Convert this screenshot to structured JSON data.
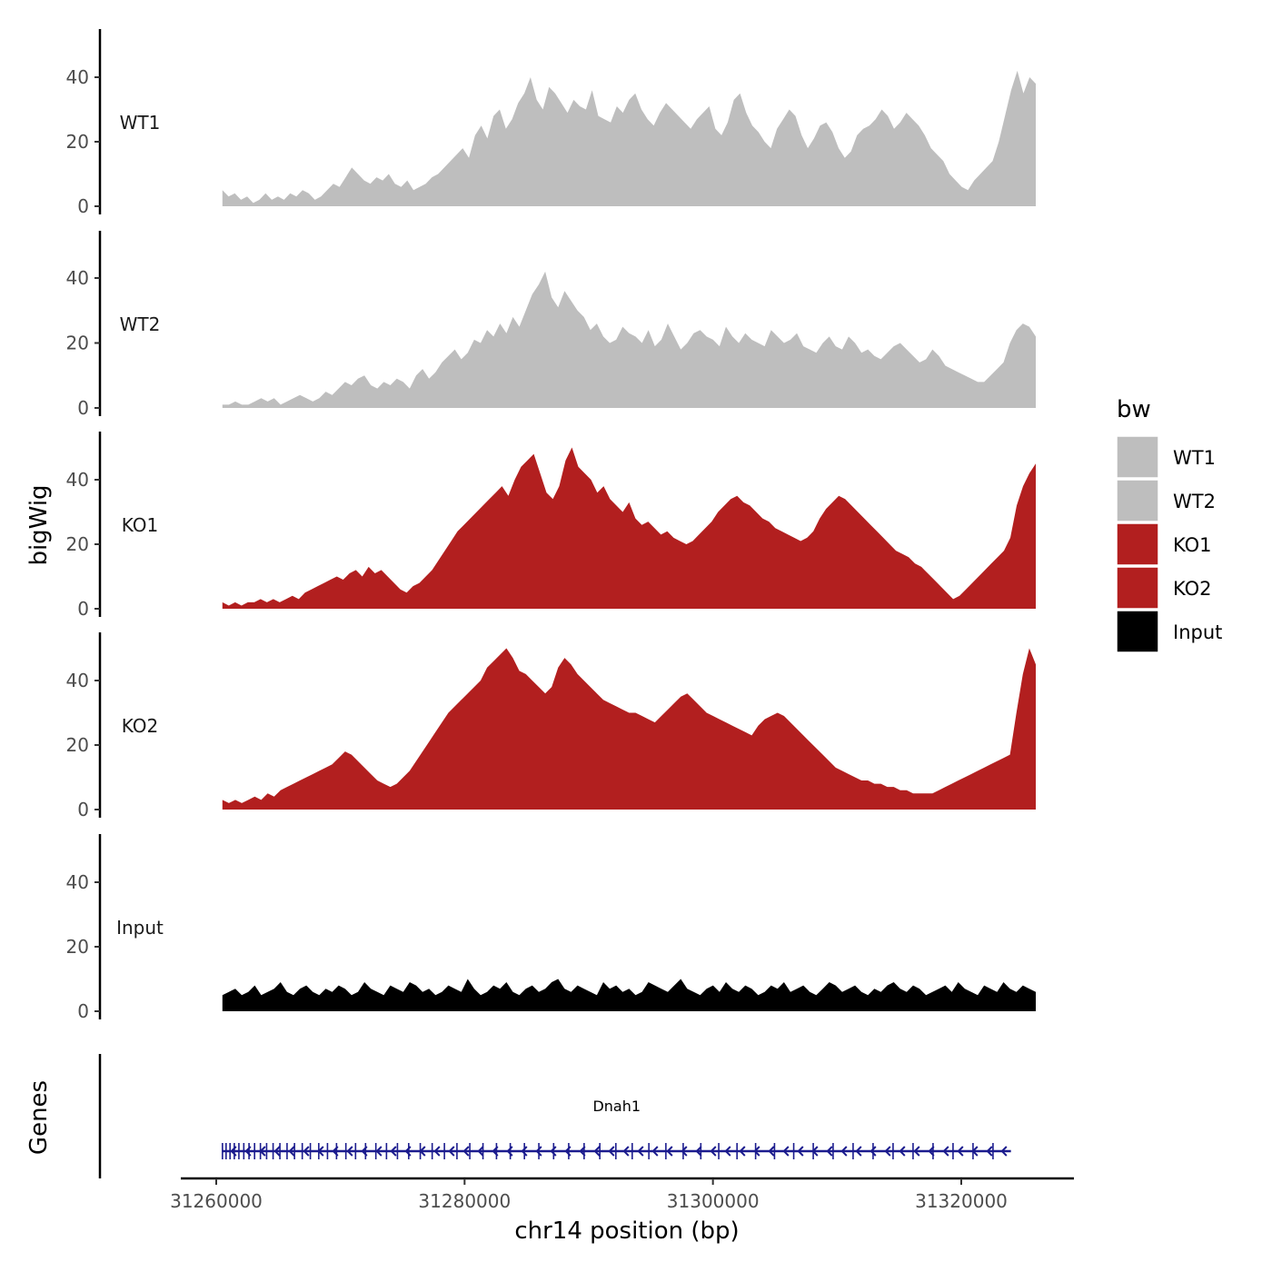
{
  "chart_data": {
    "type": "area",
    "chromosome": "chr14",
    "xlabel": "chr14 position (bp)",
    "ylabel": "bigWig",
    "gene_panel_label": "Genes",
    "xlim": [
      31257000,
      31326000
    ],
    "xticks": [
      31260000,
      31280000,
      31300000,
      31320000
    ],
    "x_tick_labels": [
      "31260000",
      "31280000",
      "31300000",
      "31320000"
    ],
    "ylim": [
      0,
      55
    ],
    "yticks": [
      0,
      20,
      40
    ],
    "y_tick_labels": [
      "0",
      "20",
      "40"
    ],
    "track_range": [
      31260500,
      31326000
    ],
    "legend": {
      "title": "bw",
      "entries": [
        {
          "label": "WT1",
          "color": "#bebebe"
        },
        {
          "label": "WT2",
          "color": "#bebebe"
        },
        {
          "label": "KO1",
          "color": "#b21f1f"
        },
        {
          "label": "KO2",
          "color": "#b21f1f"
        },
        {
          "label": "Input",
          "color": "#000000"
        }
      ]
    },
    "series": [
      {
        "name": "WT1",
        "color": "#bebebe",
        "values": [
          5,
          3,
          4,
          2,
          3,
          1,
          2,
          4,
          2,
          3,
          2,
          4,
          3,
          5,
          4,
          2,
          3,
          5,
          7,
          6,
          9,
          12,
          10,
          8,
          7,
          9,
          8,
          10,
          7,
          6,
          8,
          5,
          6,
          7,
          9,
          10,
          12,
          14,
          16,
          18,
          15,
          22,
          25,
          21,
          28,
          30,
          24,
          27,
          32,
          35,
          40,
          33,
          30,
          37,
          35,
          32,
          29,
          33,
          31,
          30,
          36,
          28,
          27,
          26,
          31,
          29,
          33,
          35,
          30,
          27,
          25,
          29,
          32,
          30,
          28,
          26,
          24,
          27,
          29,
          31,
          24,
          22,
          26,
          33,
          35,
          29,
          25,
          23,
          20,
          18,
          24,
          27,
          30,
          28,
          22,
          18,
          21,
          25,
          26,
          23,
          18,
          15,
          17,
          22,
          24,
          25,
          27,
          30,
          28,
          24,
          26,
          29,
          27,
          25,
          22,
          18,
          16,
          14,
          10,
          8,
          6,
          5,
          8,
          10,
          12,
          14,
          20,
          28,
          36,
          42,
          35,
          40,
          38
        ]
      },
      {
        "name": "WT2",
        "color": "#bebebe",
        "values": [
          1,
          1,
          2,
          1,
          1,
          2,
          3,
          2,
          3,
          1,
          2,
          3,
          4,
          3,
          2,
          3,
          5,
          4,
          6,
          8,
          7,
          9,
          10,
          7,
          6,
          8,
          7,
          9,
          8,
          6,
          10,
          12,
          9,
          11,
          14,
          16,
          18,
          15,
          17,
          21,
          20,
          24,
          22,
          26,
          23,
          28,
          25,
          30,
          35,
          38,
          42,
          34,
          31,
          36,
          33,
          30,
          28,
          24,
          26,
          22,
          20,
          21,
          25,
          23,
          22,
          20,
          24,
          19,
          21,
          26,
          22,
          18,
          20,
          23,
          24,
          22,
          21,
          19,
          25,
          22,
          20,
          23,
          21,
          20,
          19,
          24,
          22,
          20,
          21,
          23,
          19,
          18,
          17,
          20,
          22,
          19,
          18,
          22,
          20,
          17,
          18,
          16,
          15,
          17,
          19,
          20,
          18,
          16,
          14,
          15,
          18,
          16,
          13,
          12,
          11,
          10,
          9,
          8,
          8,
          10,
          12,
          14,
          20,
          24,
          26,
          25,
          22
        ]
      },
      {
        "name": "KO1",
        "color": "#b21f1f",
        "values": [
          2,
          1,
          2,
          1,
          2,
          2,
          3,
          2,
          3,
          2,
          3,
          4,
          3,
          5,
          6,
          7,
          8,
          9,
          10,
          9,
          11,
          12,
          10,
          13,
          11,
          12,
          10,
          8,
          6,
          5,
          7,
          8,
          10,
          12,
          15,
          18,
          21,
          24,
          26,
          28,
          30,
          32,
          34,
          36,
          38,
          35,
          40,
          44,
          46,
          48,
          42,
          36,
          34,
          38,
          46,
          50,
          44,
          42,
          40,
          36,
          38,
          34,
          32,
          30,
          33,
          28,
          26,
          27,
          25,
          23,
          24,
          22,
          21,
          20,
          21,
          23,
          25,
          27,
          30,
          32,
          34,
          35,
          33,
          32,
          30,
          28,
          27,
          25,
          24,
          23,
          22,
          21,
          22,
          24,
          28,
          31,
          33,
          35,
          34,
          32,
          30,
          28,
          26,
          24,
          22,
          20,
          18,
          17,
          16,
          14,
          13,
          11,
          9,
          7,
          5,
          3,
          4,
          6,
          8,
          10,
          12,
          14,
          16,
          18,
          22,
          32,
          38,
          42,
          45
        ]
      },
      {
        "name": "KO2",
        "color": "#b21f1f",
        "values": [
          3,
          2,
          3,
          2,
          3,
          4,
          3,
          5,
          4,
          6,
          7,
          8,
          9,
          10,
          11,
          12,
          13,
          14,
          16,
          18,
          17,
          15,
          13,
          11,
          9,
          8,
          7,
          8,
          10,
          12,
          15,
          18,
          21,
          24,
          27,
          30,
          32,
          34,
          36,
          38,
          40,
          44,
          46,
          48,
          50,
          47,
          43,
          42,
          40,
          38,
          36,
          38,
          44,
          47,
          45,
          42,
          40,
          38,
          36,
          34,
          33,
          32,
          31,
          30,
          30,
          29,
          28,
          27,
          29,
          31,
          33,
          35,
          36,
          34,
          32,
          30,
          29,
          28,
          27,
          26,
          25,
          24,
          23,
          26,
          28,
          29,
          30,
          29,
          27,
          25,
          23,
          21,
          19,
          17,
          15,
          13,
          12,
          11,
          10,
          9,
          9,
          8,
          8,
          7,
          7,
          6,
          6,
          5,
          5,
          5,
          5,
          6,
          7,
          8,
          9,
          10,
          11,
          12,
          13,
          14,
          15,
          16,
          17,
          30,
          42,
          50,
          45
        ]
      },
      {
        "name": "Input",
        "color": "#000000",
        "values": [
          5,
          6,
          7,
          5,
          6,
          8,
          5,
          6,
          7,
          9,
          6,
          5,
          7,
          8,
          6,
          5,
          7,
          6,
          8,
          7,
          5,
          6,
          9,
          7,
          6,
          5,
          8,
          7,
          6,
          9,
          8,
          6,
          7,
          5,
          6,
          8,
          7,
          6,
          10,
          7,
          5,
          6,
          8,
          7,
          9,
          6,
          5,
          7,
          8,
          6,
          7,
          9,
          10,
          7,
          6,
          8,
          7,
          6,
          5,
          9,
          7,
          8,
          6,
          7,
          5,
          6,
          9,
          8,
          7,
          6,
          8,
          10,
          7,
          6,
          5,
          7,
          8,
          6,
          9,
          7,
          6,
          8,
          7,
          5,
          6,
          8,
          7,
          9,
          6,
          7,
          8,
          6,
          5,
          7,
          9,
          8,
          6,
          7,
          8,
          6,
          5,
          7,
          6,
          8,
          9,
          7,
          6,
          8,
          7,
          5,
          6,
          7,
          8,
          6,
          9,
          7,
          6,
          5,
          8,
          7,
          6,
          9,
          7,
          6,
          8,
          7,
          6
        ]
      }
    ],
    "gene": {
      "name": "Dnah1",
      "start": 31260500,
      "end": 31324000,
      "strand": "-",
      "color": "#1c1c8e"
    }
  }
}
